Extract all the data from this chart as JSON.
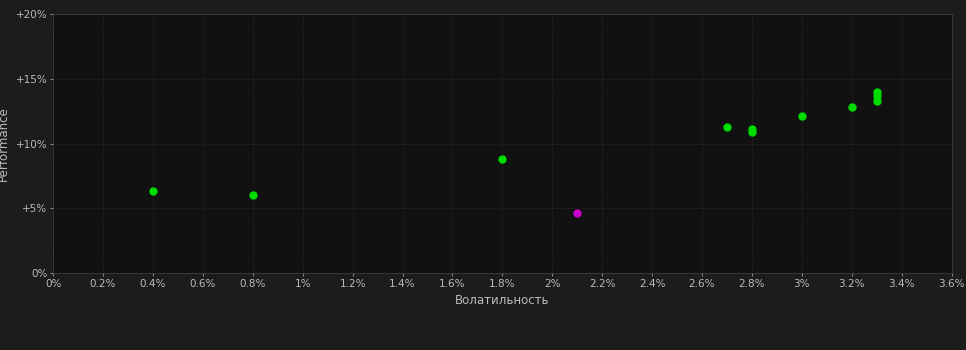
{
  "background_color": "#1c1c1c",
  "plot_bg_color": "#111111",
  "xlabel": "Волатильность",
  "ylabel": "Performance",
  "xlim": [
    0.0,
    0.036
  ],
  "ylim": [
    0.0,
    0.2
  ],
  "xtick_values": [
    0.0,
    0.002,
    0.004,
    0.006,
    0.008,
    0.01,
    0.012,
    0.014,
    0.016,
    0.018,
    0.02,
    0.022,
    0.024,
    0.026,
    0.028,
    0.03,
    0.032,
    0.034,
    0.036
  ],
  "xtick_labels": [
    "0%",
    "0.2%",
    "0.4%",
    "0.6%",
    "0.8%",
    "1%",
    "1.2%",
    "1.4%",
    "1.6%",
    "1.8%",
    "2%",
    "2.2%",
    "2.4%",
    "2.6%",
    "2.8%",
    "3%",
    "3.2%",
    "3.4%",
    "3.6%"
  ],
  "ytick_values": [
    0.0,
    0.05,
    0.1,
    0.15,
    0.2
  ],
  "ytick_labels": [
    "0%",
    "+5%",
    "+10%",
    "+15%",
    "+20%"
  ],
  "points_green": [
    [
      0.004,
      0.063
    ],
    [
      0.008,
      0.06
    ],
    [
      0.018,
      0.088
    ],
    [
      0.027,
      0.113
    ],
    [
      0.028,
      0.111
    ],
    [
      0.028,
      0.109
    ],
    [
      0.03,
      0.121
    ],
    [
      0.032,
      0.128
    ],
    [
      0.033,
      0.14
    ],
    [
      0.033,
      0.137
    ],
    [
      0.033,
      0.133
    ]
  ],
  "points_magenta": [
    [
      0.021,
      0.046
    ]
  ],
  "point_size": 25,
  "green_color": "#00dd00",
  "magenta_color": "#cc00cc",
  "tick_color": "#bbbbbb",
  "label_color": "#bbbbbb",
  "spine_color": "#444444",
  "grid_color": "#2e2e2e",
  "font_size_ticks": 7.5,
  "font_size_labels": 8.5
}
